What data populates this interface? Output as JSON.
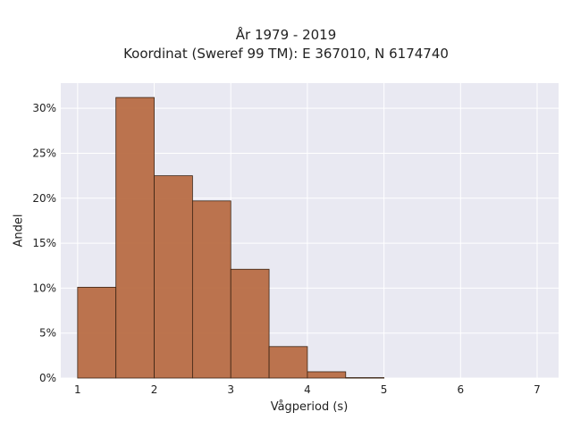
{
  "chart_data": {
    "type": "bar",
    "title": "År 1979 - 2019",
    "subtitle": "Koordinat (Sweref 99 TM): E 367010, N 6174740",
    "xlabel": "Vågperiod (s)",
    "ylabel": "Andel",
    "bin_edges": [
      1.0,
      1.5,
      2.0,
      2.5,
      3.0,
      3.5,
      4.0,
      4.5,
      5.0
    ],
    "values": [
      0.101,
      0.312,
      0.225,
      0.197,
      0.121,
      0.035,
      0.007,
      0.0005
    ],
    "xlim": [
      0.78,
      7.28
    ],
    "ylim": [
      0,
      0.328
    ],
    "xticks": [
      1,
      2,
      3,
      4,
      5,
      6,
      7
    ],
    "xtick_labels": [
      "1",
      "2",
      "3",
      "4",
      "5",
      "6",
      "7"
    ],
    "yticks": [
      0,
      0.05,
      0.1,
      0.15,
      0.2,
      0.25,
      0.3
    ],
    "ytick_labels": [
      "0%",
      "5%",
      "10%",
      "15%",
      "20%",
      "25%",
      "30%"
    ],
    "grid": true,
    "colors": {
      "bar": "#b86d45",
      "bar_edge": "#3b2414",
      "plot_bg": "#e9e9f2",
      "grid": "#ffffff"
    }
  }
}
